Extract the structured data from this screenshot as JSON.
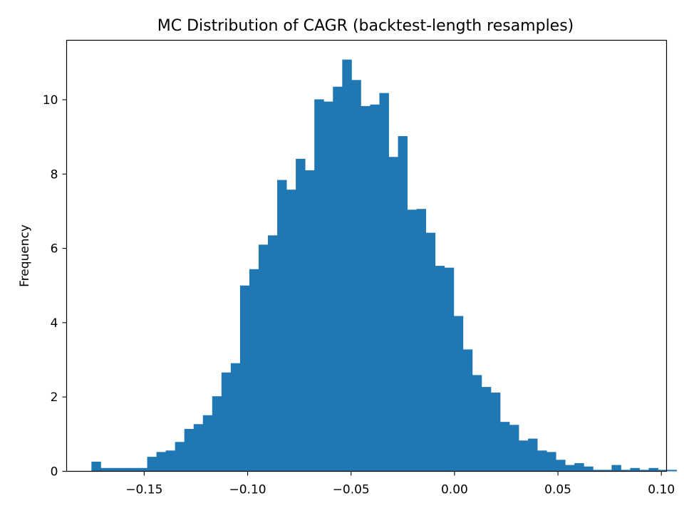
{
  "chart_data": {
    "type": "bar",
    "title": "MC Distribution of CAGR (backtest-length resamples)",
    "xlabel": "",
    "ylabel": "Frequency",
    "xlim": [
      -0.1875,
      0.1025
    ],
    "ylim": [
      0,
      11.6
    ],
    "xticks": [
      -0.15,
      -0.1,
      -0.05,
      0.0,
      0.05,
      0.1
    ],
    "xtick_labels": [
      "−0.15",
      "−0.10",
      "−0.05",
      "0.00",
      "0.05",
      "0.10"
    ],
    "yticks": [
      0,
      2,
      4,
      6,
      8,
      10
    ],
    "ytick_labels": [
      "0",
      "2",
      "4",
      "6",
      "8",
      "10"
    ],
    "grid": false,
    "color": "#1f77b4",
    "bin_start": -0.1755,
    "bin_width": 0.00449,
    "values": [
      0.26,
      0.09,
      0.09,
      0.09,
      0.09,
      0.09,
      0.39,
      0.52,
      0.56,
      0.79,
      1.14,
      1.27,
      1.51,
      2.02,
      2.66,
      2.91,
      5.0,
      5.44,
      6.1,
      6.35,
      7.84,
      7.58,
      8.41,
      8.1,
      10.01,
      9.95,
      10.35,
      11.08,
      10.53,
      9.83,
      9.87,
      10.18,
      8.46,
      9.02,
      7.04,
      7.06,
      6.42,
      5.53,
      5.48,
      4.18,
      3.28,
      2.59,
      2.27,
      2.12,
      1.33,
      1.25,
      0.83,
      0.88,
      0.56,
      0.52,
      0.31,
      0.17,
      0.22,
      0.13,
      0.04,
      0.04,
      0.17,
      0.04,
      0.09,
      0.04,
      0.09,
      0.04,
      0.04
    ]
  }
}
